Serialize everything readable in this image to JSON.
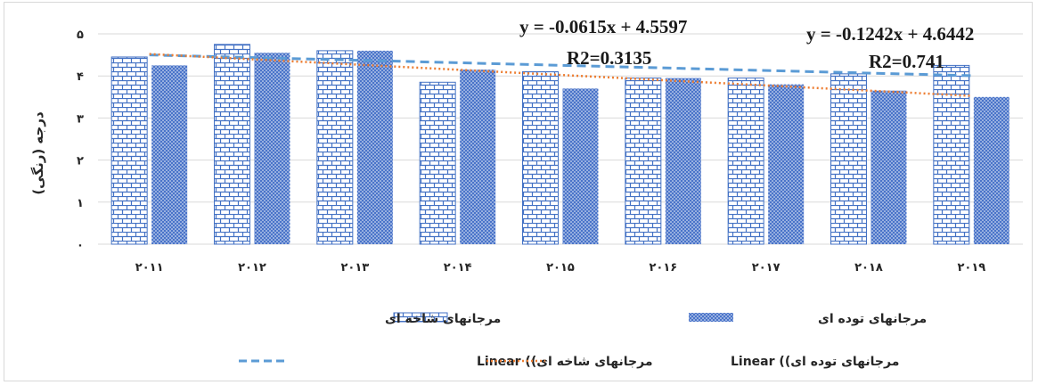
{
  "chart_data": {
    "type": "bar",
    "categories": [
      "۲۰۱۱",
      "۲۰۱۲",
      "۲۰۱۳",
      "۲۰۱۴",
      "۲۰۱۵",
      "۲۰۱۶",
      "۲۰۱۷",
      "۲۰۱۸",
      "۲۰۱۹"
    ],
    "yticks": [
      "۰",
      "۱",
      "۲",
      "۳",
      "۴",
      "۵"
    ],
    "ylim": [
      0,
      5
    ],
    "ylabel": "درجه (رنگی)",
    "xlabel": "",
    "title": "",
    "grid": true,
    "legend_position": "bottom",
    "series": [
      {
        "name": "مرجانهای شاخه ای",
        "pattern": "brick",
        "color": "#4472c4",
        "values": [
          4.45,
          4.75,
          4.6,
          3.85,
          4.1,
          3.95,
          3.95,
          4.05,
          4.25
        ]
      },
      {
        "name": "مرجانهای توده ای",
        "pattern": "dots",
        "color": "#4472c4",
        "values": [
          4.25,
          4.55,
          4.6,
          4.15,
          3.7,
          3.95,
          3.8,
          3.65,
          3.5
        ]
      }
    ],
    "trendlines": [
      {
        "legend_label": "مرجانهای شاخه ای)) Linear",
        "style": "dashed",
        "color": "#5b9bd5",
        "equation": "y = -0.0615x + 4.5597",
        "r2": "R2=0.3135",
        "slope": -0.0615,
        "intercept": 4.5597
      },
      {
        "legend_label": "مرجانهای توده ای)) Linear",
        "style": "dotted",
        "color": "#ed7d31",
        "equation": "y = -0.1242x + 4.6442",
        "r2": "R2=0.741",
        "slope": -0.1242,
        "intercept": 4.6442
      }
    ]
  }
}
